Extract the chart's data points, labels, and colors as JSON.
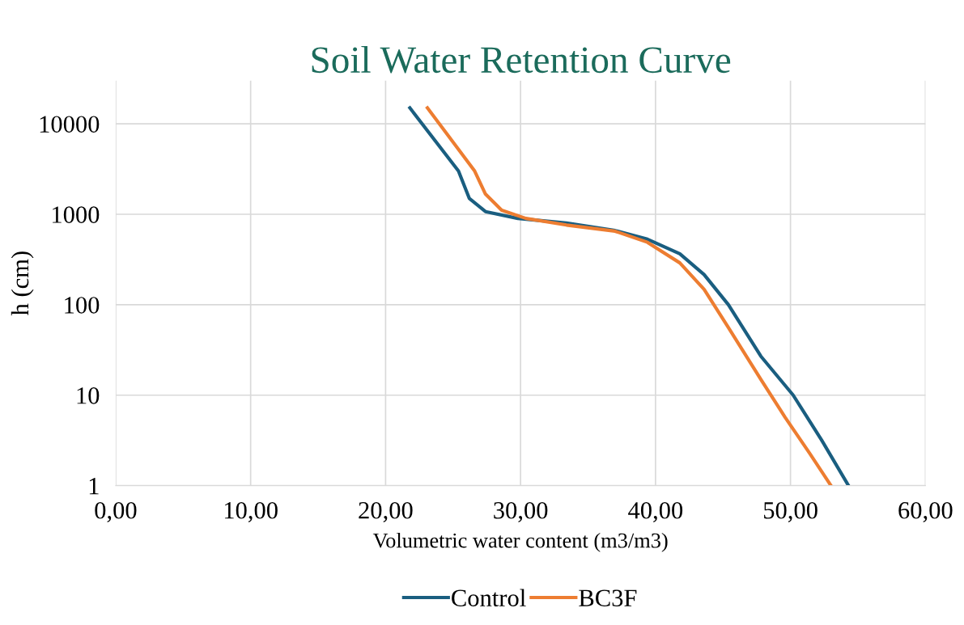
{
  "chart_data": {
    "type": "line",
    "title": "Soil Water Retention Curve",
    "xlabel": "Volumetric water content (m3/m3)",
    "ylabel": "h (cm)",
    "log": "y",
    "grid": true,
    "legend": "bottom",
    "marker": "none",
    "line_style": "solid",
    "xlim": [
      0,
      60
    ],
    "xticks": [
      {
        "value": 0,
        "label": "0,00"
      },
      {
        "value": 10,
        "label": "10,00"
      },
      {
        "value": 20,
        "label": "20,00"
      },
      {
        "value": 30,
        "label": "30,00"
      },
      {
        "value": 40,
        "label": "40,00"
      },
      {
        "value": 50,
        "label": "50,00"
      },
      {
        "value": 60,
        "label": "60,00"
      }
    ],
    "ylim": [
      1,
      30000
    ],
    "yticks": [
      1,
      10,
      100,
      1000,
      10000
    ],
    "series": [
      {
        "name": "Control",
        "color": "#1a5e80",
        "x": [
          21.8,
          25.4,
          26.2,
          27.4,
          29.8,
          33.4,
          37.0,
          39.4,
          41.8,
          43.6,
          45.4,
          47.8,
          50.2,
          52.3,
          54.3
        ],
        "values": [
          15000,
          3000,
          1500,
          1070,
          900,
          800,
          660,
          530,
          365,
          215,
          100,
          27,
          10,
          3.2,
          1
        ]
      },
      {
        "name": "BC3F",
        "color": "#ed7d31",
        "x": [
          23.1,
          26.6,
          27.4,
          28.6,
          30.4,
          33.4,
          37.0,
          39.4,
          41.8,
          43.6,
          45.4,
          47.8,
          49.6,
          51.4,
          53.0
        ],
        "values": [
          15000,
          3000,
          1670,
          1110,
          900,
          760,
          650,
          490,
          290,
          148,
          56,
          15,
          5.7,
          2.3,
          1
        ]
      }
    ]
  }
}
